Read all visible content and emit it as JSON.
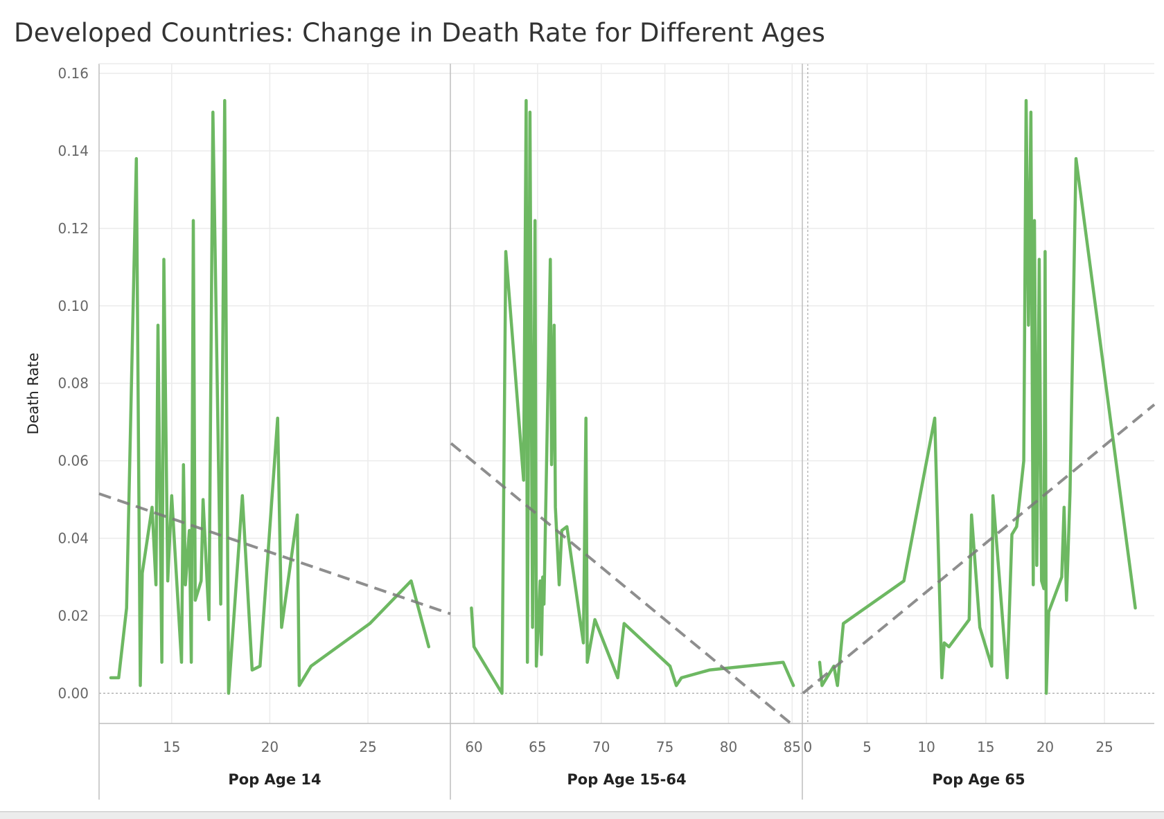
{
  "title": "Developed Countries: Change in Death Rate for Different Ages",
  "colors": {
    "line": "#6db862",
    "trend": "#7a7a7a",
    "grid": "#ebebeb",
    "axis": "#bdbdbd",
    "zero_line": "#a8a8a8"
  },
  "chart_data": {
    "type": "line",
    "ylabel": "Death Rate",
    "ylim": [
      -0.0078,
      0.1625
    ],
    "yticks": [
      0.0,
      0.02,
      0.04,
      0.06,
      0.08,
      0.1,
      0.12,
      0.14,
      0.16
    ],
    "ytick_labels": [
      "0.00",
      "0.02",
      "0.04",
      "0.06",
      "0.08",
      "0.10",
      "0.12",
      "0.14",
      "0.16"
    ],
    "grid": true,
    "panels": [
      {
        "xlabel": "Pop Age 14",
        "xlim": [
          11.3,
          29.2
        ],
        "xticks": [
          15,
          20,
          25
        ],
        "xtick_labels": [
          "15",
          "20",
          "25"
        ],
        "trend": {
          "x": [
            11.3,
            29.2
          ],
          "y": [
            0.0515,
            0.0205
          ]
        },
        "points": [
          [
            11.9,
            0.004
          ],
          [
            12.3,
            0.004
          ],
          [
            12.7,
            0.022
          ],
          [
            13.2,
            0.138
          ],
          [
            13.4,
            0.002
          ],
          [
            13.5,
            0.031
          ],
          [
            14.0,
            0.048
          ],
          [
            14.2,
            0.028
          ],
          [
            14.3,
            0.095
          ],
          [
            14.5,
            0.008
          ],
          [
            14.6,
            0.112
          ],
          [
            14.8,
            0.029
          ],
          [
            15.0,
            0.051
          ],
          [
            15.5,
            0.008
          ],
          [
            15.6,
            0.059
          ],
          [
            15.7,
            0.028
          ],
          [
            15.9,
            0.042
          ],
          [
            16.0,
            0.008
          ],
          [
            16.1,
            0.122
          ],
          [
            16.2,
            0.024
          ],
          [
            16.5,
            0.029
          ],
          [
            16.6,
            0.05
          ],
          [
            16.9,
            0.019
          ],
          [
            17.1,
            0.15
          ],
          [
            17.5,
            0.023
          ],
          [
            17.7,
            0.153
          ],
          [
            17.9,
            0.0
          ],
          [
            18.6,
            0.051
          ],
          [
            19.1,
            0.006
          ],
          [
            19.5,
            0.007
          ],
          [
            20.4,
            0.071
          ],
          [
            20.6,
            0.017
          ],
          [
            21.4,
            0.046
          ],
          [
            21.5,
            0.002
          ],
          [
            22.1,
            0.007
          ],
          [
            25.1,
            0.018
          ],
          [
            27.2,
            0.029
          ],
          [
            28.1,
            0.012
          ]
        ]
      },
      {
        "xlabel": "Pop Age 15-64",
        "xlim": [
          58.2,
          85.8
        ],
        "xticks": [
          60,
          65,
          70,
          75,
          80,
          85
        ],
        "xtick_labels": [
          "60",
          "65",
          "70",
          "75",
          "80",
          "85"
        ],
        "trend": {
          "x": [
            58.2,
            84.9
          ],
          "y": [
            0.0645,
            -0.0078
          ]
        },
        "points": [
          [
            59.8,
            0.022
          ],
          [
            60.0,
            0.012
          ],
          [
            62.2,
            0.0
          ],
          [
            62.5,
            0.114
          ],
          [
            63.9,
            0.055
          ],
          [
            64.1,
            0.153
          ],
          [
            64.2,
            0.008
          ],
          [
            64.4,
            0.15
          ],
          [
            64.6,
            0.017
          ],
          [
            64.8,
            0.122
          ],
          [
            64.9,
            0.007
          ],
          [
            65.2,
            0.029
          ],
          [
            65.3,
            0.01
          ],
          [
            65.4,
            0.03
          ],
          [
            65.5,
            0.023
          ],
          [
            66.0,
            0.112
          ],
          [
            66.1,
            0.059
          ],
          [
            66.3,
            0.095
          ],
          [
            66.4,
            0.048
          ],
          [
            66.7,
            0.028
          ],
          [
            66.9,
            0.042
          ],
          [
            67.3,
            0.043
          ],
          [
            68.6,
            0.013
          ],
          [
            68.8,
            0.071
          ],
          [
            68.9,
            0.008
          ],
          [
            69.5,
            0.019
          ],
          [
            71.3,
            0.004
          ],
          [
            71.8,
            0.018
          ],
          [
            75.4,
            0.007
          ],
          [
            75.9,
            0.002
          ],
          [
            76.3,
            0.004
          ],
          [
            78.5,
            0.006
          ],
          [
            84.3,
            0.008
          ],
          [
            85.1,
            0.002
          ]
        ]
      },
      {
        "xlabel": "Pop Age 65",
        "xlim": [
          -0.4,
          29.2
        ],
        "xticks": [
          0,
          5,
          10,
          15,
          20,
          25
        ],
        "xtick_labels": [
          "0",
          "5",
          "10",
          "15",
          "20",
          "25"
        ],
        "trend": {
          "x": [
            -0.4,
            29.2
          ],
          "y": [
            0.0,
            0.0745
          ]
        },
        "points": [
          [
            1.0,
            0.008
          ],
          [
            1.2,
            0.002
          ],
          [
            2.2,
            0.007
          ],
          [
            2.5,
            0.002
          ],
          [
            3.0,
            0.018
          ],
          [
            8.1,
            0.029
          ],
          [
            10.7,
            0.071
          ],
          [
            11.3,
            0.004
          ],
          [
            11.5,
            0.013
          ],
          [
            11.9,
            0.012
          ],
          [
            13.6,
            0.019
          ],
          [
            13.8,
            0.046
          ],
          [
            14.5,
            0.017
          ],
          [
            15.5,
            0.007
          ],
          [
            15.6,
            0.051
          ],
          [
            16.8,
            0.004
          ],
          [
            17.2,
            0.041
          ],
          [
            17.6,
            0.043
          ],
          [
            18.2,
            0.06
          ],
          [
            18.4,
            0.153
          ],
          [
            18.6,
            0.095
          ],
          [
            18.8,
            0.15
          ],
          [
            19.0,
            0.028
          ],
          [
            19.1,
            0.122
          ],
          [
            19.3,
            0.033
          ],
          [
            19.5,
            0.112
          ],
          [
            19.7,
            0.029
          ],
          [
            19.9,
            0.027
          ],
          [
            20.0,
            0.114
          ],
          [
            20.1,
            0.0
          ],
          [
            20.3,
            0.021
          ],
          [
            21.4,
            0.03
          ],
          [
            21.6,
            0.048
          ],
          [
            21.8,
            0.024
          ],
          [
            22.1,
            0.052
          ],
          [
            22.6,
            0.138
          ],
          [
            27.6,
            0.022
          ]
        ]
      }
    ]
  }
}
